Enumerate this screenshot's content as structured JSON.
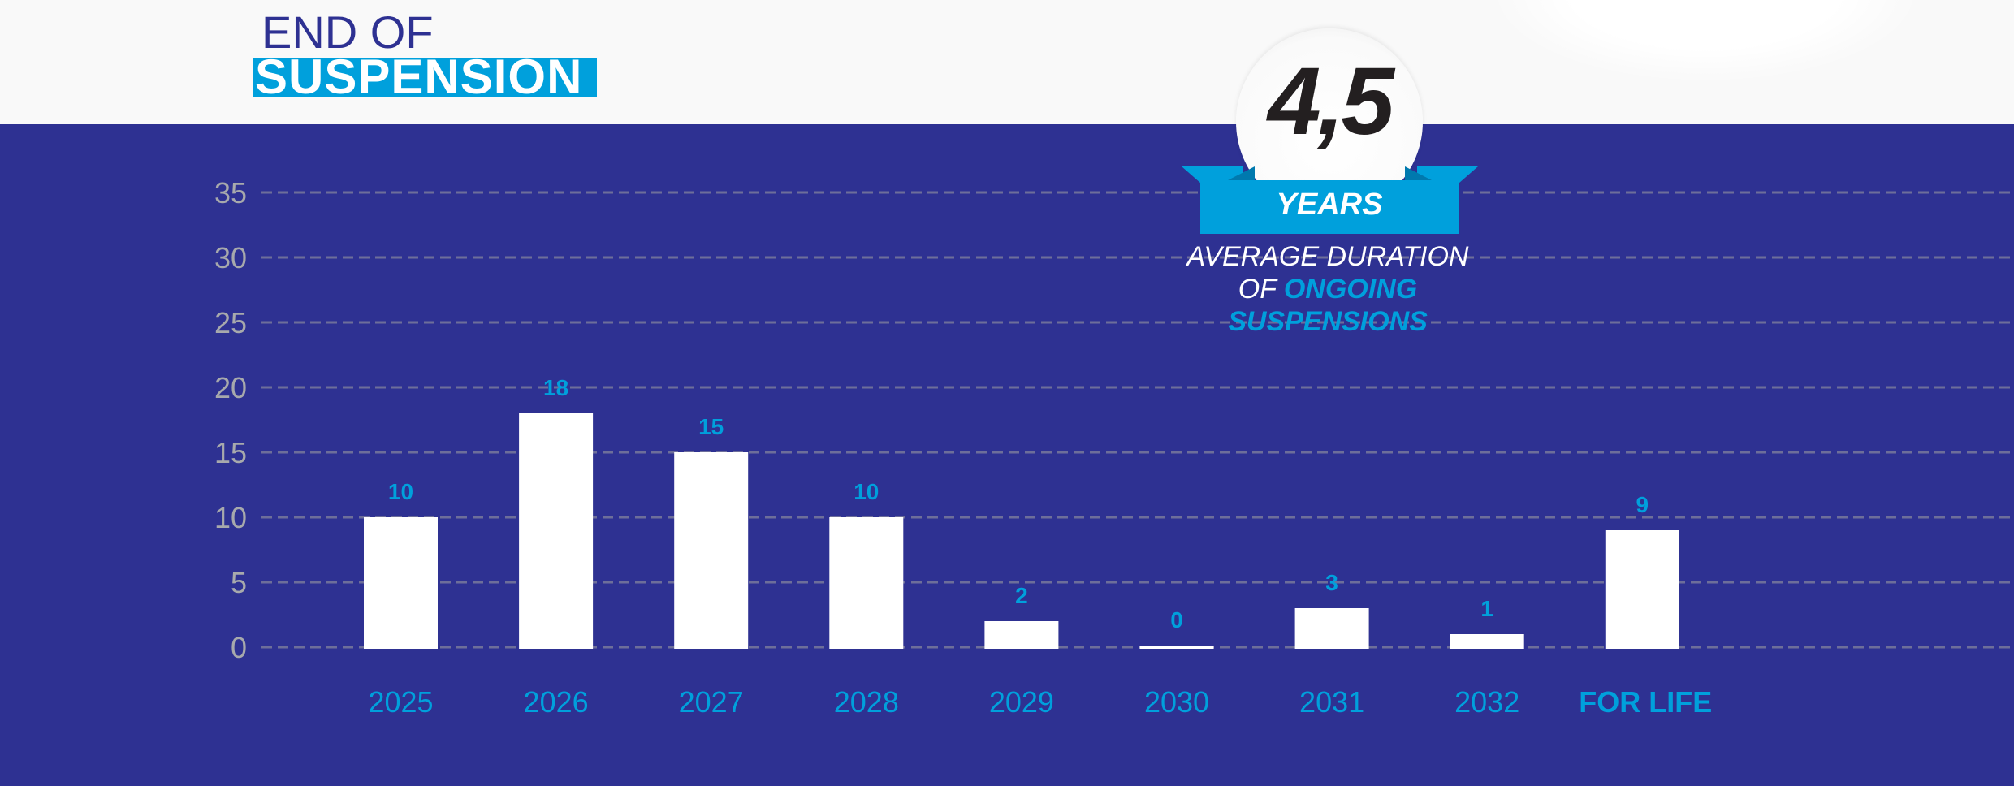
{
  "header": {
    "title_line1": "END OF",
    "title_line2": "SUSPENSION"
  },
  "badge": {
    "value": "4,5",
    "unit": "YEARS",
    "caption_line1": "AVERAGE DURATION",
    "caption_line2_prefix": "OF ",
    "caption_line2_highlight": "ONGOING",
    "caption_line3_highlight": "SUSPENSIONS"
  },
  "colors": {
    "background": "#2e3192",
    "header_background": "#f9f9f9",
    "accent": "#00a0dc",
    "bar": "#ffffff",
    "axis_text": "#a7a9ac",
    "grid": "#6d6e9a"
  },
  "chart_data": {
    "type": "bar",
    "title": "END OF SUSPENSION",
    "xlabel": "",
    "ylabel": "",
    "categories": [
      "2025",
      "2026",
      "2027",
      "2028",
      "2029",
      "2030",
      "2031",
      "2032",
      "FOR LIFE"
    ],
    "values": [
      10,
      18,
      15,
      10,
      2,
      0,
      3,
      1,
      9
    ],
    "data_labels": [
      "10",
      "18",
      "15",
      "10",
      "2",
      "0",
      "3",
      "1",
      "9"
    ],
    "ylim": [
      0,
      35
    ],
    "yticks": [
      0,
      5,
      10,
      15,
      20,
      25,
      30,
      35
    ],
    "ytick_labels": [
      "0",
      "5",
      "10",
      "15",
      "20",
      "25",
      "30",
      "35"
    ],
    "grid": true,
    "grid_style": "dashed",
    "legend": "none",
    "bold_categories": [
      "FOR LIFE"
    ]
  }
}
